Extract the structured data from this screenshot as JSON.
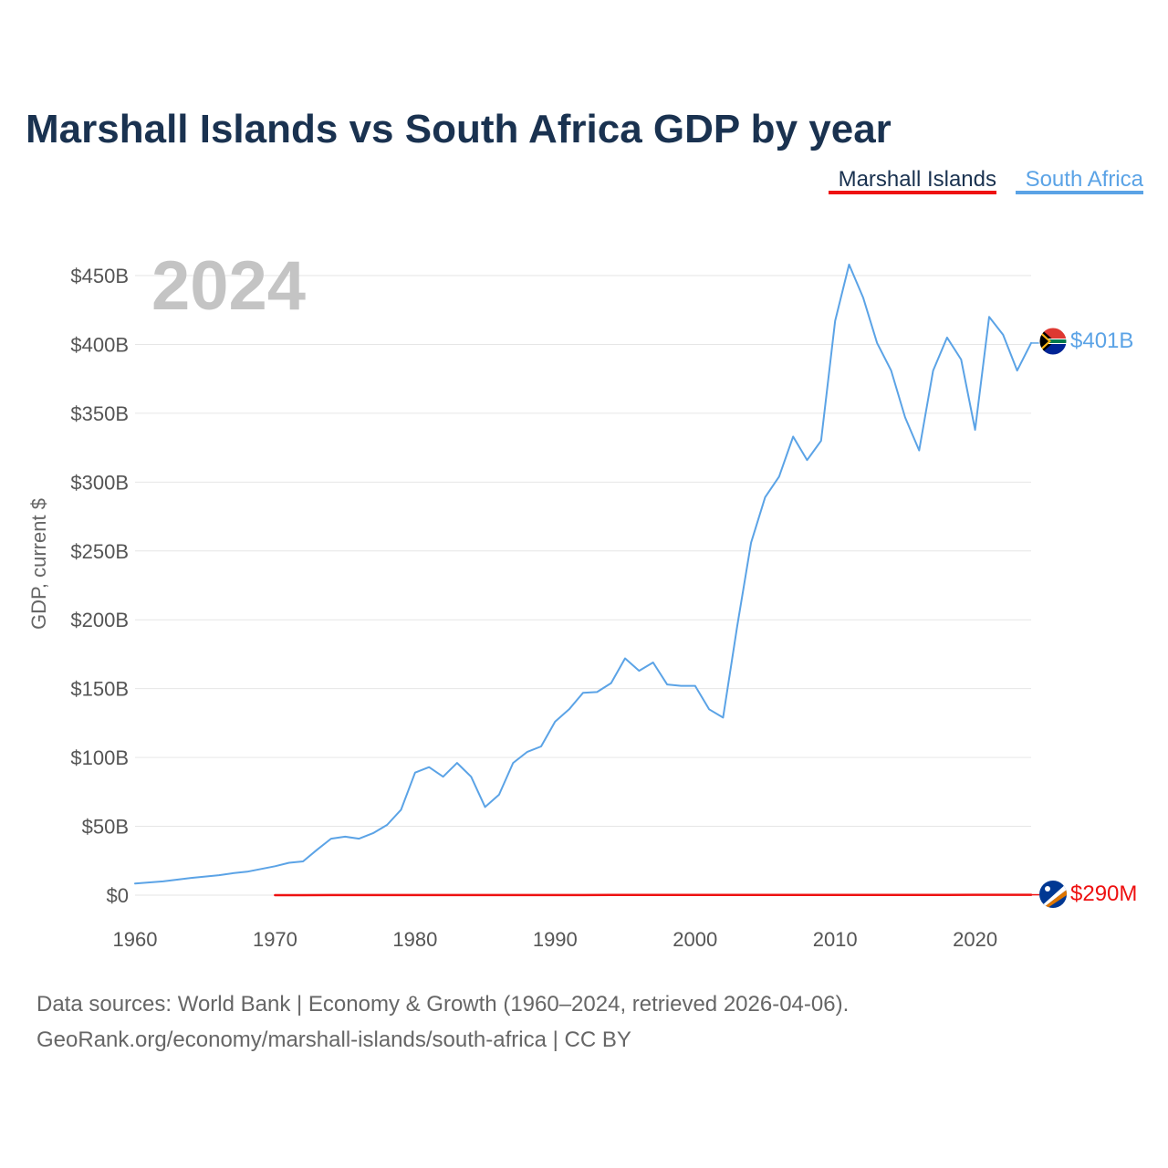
{
  "chart_data": {
    "type": "line",
    "title": "Marshall Islands vs South Africa GDP by year",
    "ylabel": "GDP, current $",
    "xlabel": "",
    "year_label": "2024",
    "xlim": [
      1960,
      2024
    ],
    "ylim": [
      0,
      450
    ],
    "y_unit": "billions USD",
    "x_ticks": [
      1960,
      1970,
      1980,
      1990,
      2000,
      2010,
      2020
    ],
    "y_ticks": [
      {
        "value": 0,
        "label": "$0"
      },
      {
        "value": 50,
        "label": "$50B"
      },
      {
        "value": 100,
        "label": "$100B"
      },
      {
        "value": 150,
        "label": "$150B"
      },
      {
        "value": 200,
        "label": "$200B"
      },
      {
        "value": 250,
        "label": "$250B"
      },
      {
        "value": 300,
        "label": "$300B"
      },
      {
        "value": 350,
        "label": "$350B"
      },
      {
        "value": 400,
        "label": "$400B"
      },
      {
        "value": 450,
        "label": "$450B"
      }
    ],
    "legend_position": "top-right",
    "series": [
      {
        "name": "Marshall Islands",
        "color": "#ee1111",
        "end_label": "$290M",
        "flag": "marshall-islands-flag-icon",
        "x": [
          1970,
          1972,
          1974,
          1976,
          1978,
          1980,
          1982,
          1984,
          1986,
          1988,
          1990,
          1992,
          1994,
          1996,
          1998,
          2000,
          2002,
          2004,
          2006,
          2008,
          2010,
          2012,
          2014,
          2016,
          2018,
          2020,
          2022,
          2024
        ],
        "values": [
          0.03,
          0.03,
          0.035,
          0.04,
          0.045,
          0.05,
          0.06,
          0.065,
          0.07,
          0.075,
          0.08,
          0.09,
          0.1,
          0.11,
          0.11,
          0.11,
          0.12,
          0.14,
          0.15,
          0.16,
          0.17,
          0.18,
          0.19,
          0.2,
          0.22,
          0.24,
          0.27,
          0.29
        ]
      },
      {
        "name": "South Africa",
        "color": "#5ba3e6",
        "end_label": "$401B",
        "flag": "south-africa-flag-icon",
        "x": [
          1960,
          1962,
          1964,
          1966,
          1967,
          1968,
          1970,
          1971,
          1972,
          1973,
          1974,
          1975,
          1976,
          1977,
          1978,
          1979,
          1980,
          1981,
          1982,
          1983,
          1984,
          1985,
          1986,
          1987,
          1988,
          1989,
          1990,
          1991,
          1992,
          1993,
          1994,
          1995,
          1996,
          1997,
          1998,
          1999,
          2000,
          2001,
          2002,
          2003,
          2004,
          2005,
          2006,
          2007,
          2008,
          2009,
          2010,
          2011,
          2012,
          2013,
          2014,
          2015,
          2016,
          2017,
          2018,
          2019,
          2020,
          2021,
          2022,
          2023,
          2024
        ],
        "values": [
          8.5,
          10,
          12.5,
          14.5,
          16,
          17,
          21,
          23.5,
          24.5,
          33,
          41,
          42.5,
          41,
          45,
          51,
          62,
          89,
          93,
          86,
          96,
          86,
          64,
          73,
          96,
          104,
          108,
          126,
          135,
          147,
          147.5,
          154,
          172,
          163,
          169,
          153,
          152,
          152,
          135,
          129,
          195,
          256,
          289,
          304,
          333,
          316,
          330,
          417,
          458,
          434,
          401,
          381,
          347,
          323,
          381,
          405,
          389,
          338,
          420,
          407,
          381,
          401
        ]
      }
    ]
  },
  "source": {
    "line1": "Data sources: World Bank | Economy & Growth (1960–2024, retrieved 2026-04-06).",
    "line2": "GeoRank.org/economy/marshall-islands/south-africa | CC BY"
  }
}
